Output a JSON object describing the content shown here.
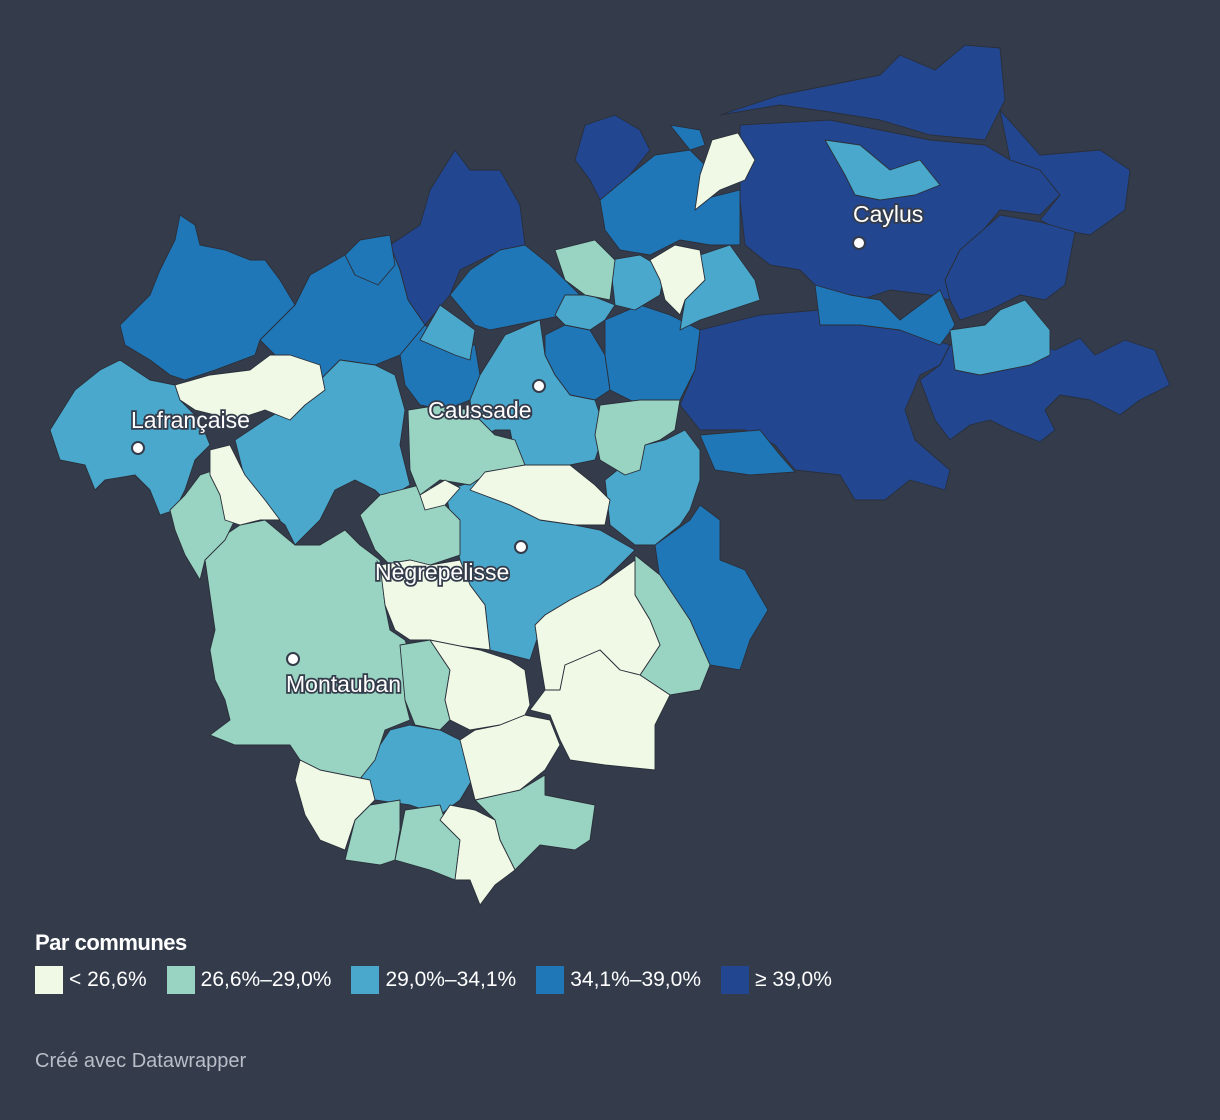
{
  "legend": {
    "title": "Par communes",
    "classes": [
      {
        "label": "< 26,6%",
        "color": "#eff9e6"
      },
      {
        "label": "26,6%–29,0%",
        "color": "#98d4c1"
      },
      {
        "label": "29,0%–34,1%",
        "color": "#4aa8cc"
      },
      {
        "label": "34,1%–39,0%",
        "color": "#2077b8"
      },
      {
        "label": "≥ 39,0%",
        "color": "#22468f"
      }
    ]
  },
  "cities": [
    {
      "name": "Caylus"
    },
    {
      "name": "Caussade"
    },
    {
      "name": "Lafrançaise"
    },
    {
      "name": "Nègrepelisse"
    },
    {
      "name": "Montauban"
    }
  ],
  "map": {
    "background": "#343c4b",
    "border_color": "#2a2f3a"
  },
  "footer": {
    "credit": "Créé avec Datawrapper"
  }
}
